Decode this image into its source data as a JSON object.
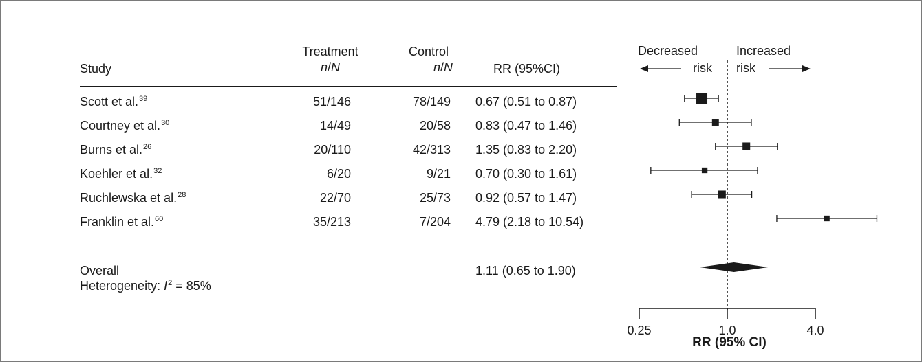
{
  "chart_data": {
    "type": "forest",
    "columns": {
      "study": "Study",
      "treatment": {
        "top": "Treatment",
        "sub_n": "n",
        "sub_sep": "/",
        "sub_N": "N"
      },
      "control": {
        "top": "Control",
        "sub_n": "n",
        "sub_sep": "/",
        "sub_N": "N"
      },
      "rr": "RR (95%CI)"
    },
    "direction_labels": {
      "left_top": "Decreased",
      "left_bottom": "risk",
      "right_top": "Increased",
      "right_bottom": "risk"
    },
    "studies": [
      {
        "name": "Scott et al.",
        "ref": "39",
        "treatment": "51/146",
        "control": "78/149",
        "rr_text": "0.67 (0.51 to 0.87)",
        "rr": 0.67,
        "lower": 0.51,
        "upper": 0.87,
        "weight": 1.0
      },
      {
        "name": "Courtney et al.",
        "ref": "30",
        "treatment": "14/49",
        "control": "20/58",
        "rr_text": "0.83 (0.47 to 1.46)",
        "rr": 0.83,
        "lower": 0.47,
        "upper": 1.46,
        "weight": 0.45
      },
      {
        "name": "Burns et al.",
        "ref": "26",
        "treatment": "20/110",
        "control": "42/313",
        "rr_text": "1.35 (0.83 to 2.20)",
        "rr": 1.35,
        "lower": 0.83,
        "upper": 2.2,
        "weight": 0.55
      },
      {
        "name": "Koehler et al.",
        "ref": "32",
        "treatment": "6/20",
        "control": "9/21",
        "rr_text": "0.70 (0.30 to 1.61)",
        "rr": 0.7,
        "lower": 0.3,
        "upper": 1.61,
        "weight": 0.3
      },
      {
        "name": "Ruchlewska et al.",
        "ref": "28",
        "treatment": "22/70",
        "control": "25/73",
        "rr_text": "0.92 (0.57 to 1.47)",
        "rr": 0.92,
        "lower": 0.57,
        "upper": 1.47,
        "weight": 0.55
      },
      {
        "name": "Franklin et al.",
        "ref": "60",
        "treatment": "35/213",
        "control": "7/204",
        "rr_text": "4.79 (2.18 to 10.54)",
        "rr": 4.79,
        "lower": 2.18,
        "upper": 10.54,
        "weight": 0.3
      }
    ],
    "overall": {
      "label": "Overall",
      "rr_text": "1.11 (0.65 to 1.90)",
      "rr": 1.11,
      "lower": 0.65,
      "upper": 1.9,
      "heterogeneity_prefix": "Heterogeneity: ",
      "heterogeneity_symbol": "I",
      "heterogeneity_exp": "2",
      "heterogeneity_value": " = 85%"
    },
    "x_axis": {
      "scale": "log",
      "ticks": [
        0.25,
        1.0,
        4.0
      ],
      "tick_labels": [
        "0.25",
        "1.0",
        "4.0"
      ],
      "reference_line": 1.0,
      "label": "RR (95% CI)"
    }
  }
}
